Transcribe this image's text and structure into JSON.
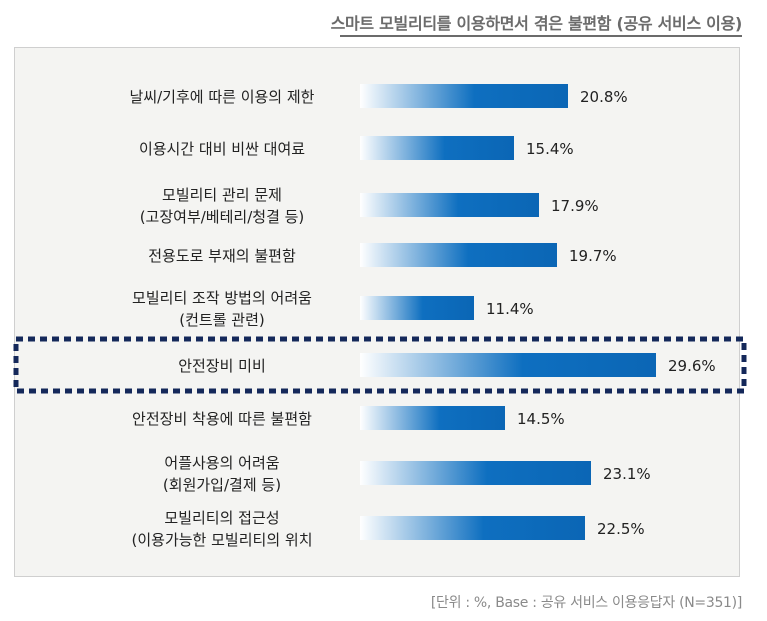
{
  "chart_data": {
    "type": "bar",
    "orientation": "horizontal",
    "title": "스마트 모빌리티를 이용하면서 겪은 불편함 (공유 서비스 이용)",
    "categories": [
      [
        "날씨/기후에 따른 이용의 제한"
      ],
      [
        "이용시간 대비 비싼 대여료"
      ],
      [
        "모빌리티 관리 문제",
        "(고장여부/베테리/청결 등)"
      ],
      [
        "전용도로 부재의 불편함"
      ],
      [
        "모빌리티 조작 방법의 어려움",
        "(컨트롤 관련)"
      ],
      [
        "안전장비 미비"
      ],
      [
        "안전장비 착용에 따른 불편함"
      ],
      [
        "어플사용의 어려움",
        "(회원가입/결제 등)"
      ],
      [
        "모빌리티의 접근성",
        "(이용가능한 모빌리티의 위치"
      ]
    ],
    "values": [
      20.8,
      15.4,
      17.9,
      19.7,
      11.4,
      29.6,
      14.5,
      23.1,
      22.5
    ],
    "value_labels": [
      "20.8%",
      "15.4%",
      "17.9%",
      "19.7%",
      "11.4%",
      "29.6%",
      "14.5%",
      "23.1%",
      "22.5%"
    ],
    "highlight_index": 5,
    "unit": "%"
  },
  "footer": "[단위 : %, Base : 공유 서비스 이용응답자 (N=351)]",
  "colors": {
    "bar_dark": "#0e6fc0",
    "bar_light": "#ffffff",
    "highlight_border": "#14285a",
    "label": "#222222"
  }
}
